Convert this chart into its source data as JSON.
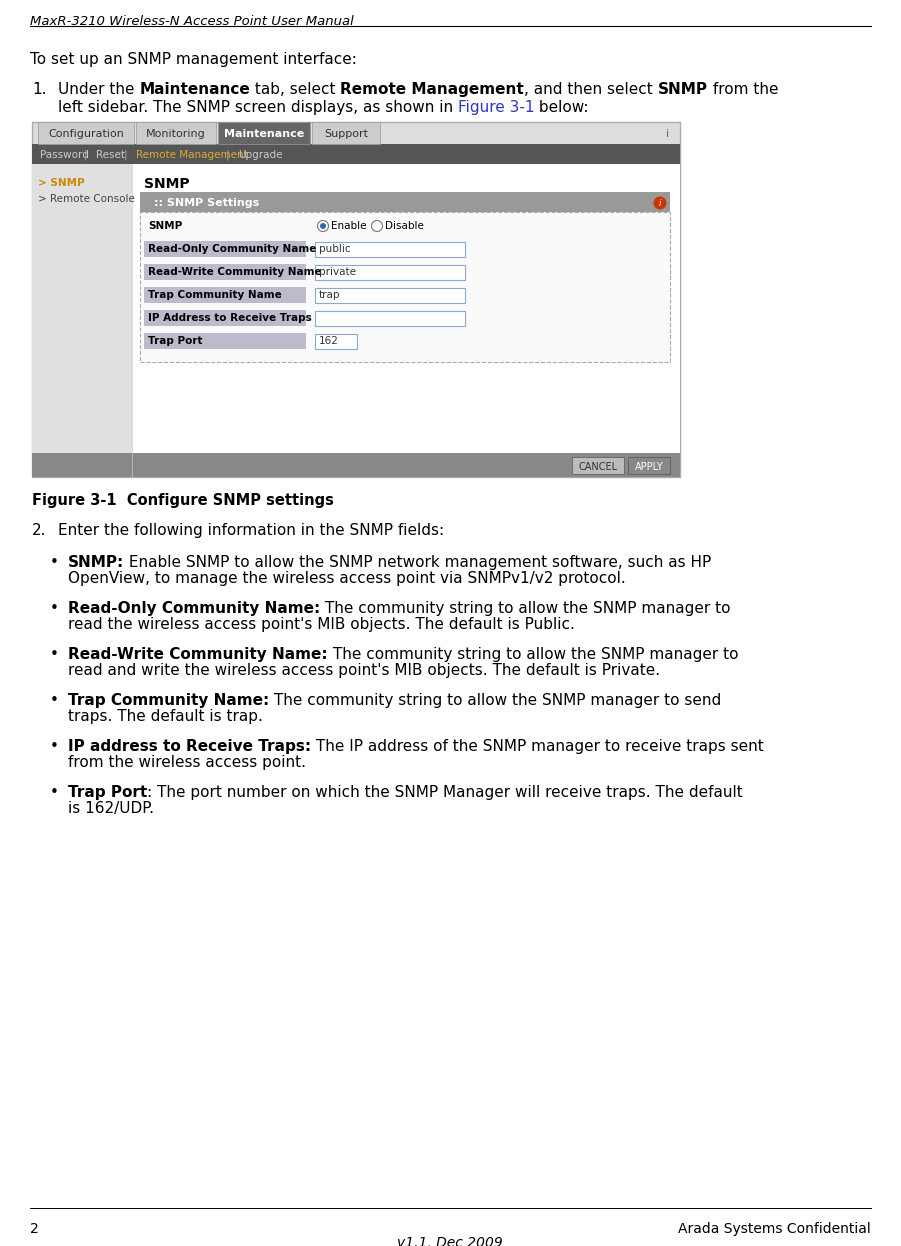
{
  "page_title": "MaxR-3210 Wireless-N Access Point User Manual",
  "page_number": "2",
  "page_footer_right": "Arada Systems Confidential",
  "page_footer_center": "v1.1, Dec 2009",
  "intro_text": "To set up an SNMP management interface:",
  "figure_caption": "Figure 3-1  Configure SNMP settings",
  "step2_intro": "Enter the following information in the SNMP fields:",
  "bullets": [
    {
      "bold": "SNMP:",
      "line1": " Enable SNMP to allow the SNMP network management software, such as HP",
      "line2": "OpenView, to manage the wireless access point via SNMPv1/v2 protocol."
    },
    {
      "bold": "Read-Only Community Name:",
      "line1": " The community string to allow the SNMP manager to",
      "line2": "read the wireless access point's MIB objects. The default is Public."
    },
    {
      "bold": "Read-Write Community Name:",
      "line1": " The community string to allow the SNMP manager to",
      "line2": "read and write the wireless access point's MIB objects. The default is Private."
    },
    {
      "bold": "Trap Community Name:",
      "line1": " The community string to allow the SNMP manager to send",
      "line2": "traps. The default is trap."
    },
    {
      "bold": "IP address to Receive Traps:",
      "line1": " The IP address of the SNMP manager to receive traps sent",
      "line2": "from the wireless access point."
    },
    {
      "bold": "Trap Port",
      "line1": ": The port number on which the SNMP Manager will receive traps. The default",
      "line2": "is 162/UDP."
    }
  ],
  "bg_color": "#ffffff",
  "link_color": "#3333cc",
  "tab_bg_active": "#666666",
  "tab_bg_inactive": "#cccccc",
  "tab_text_active": "#ffffff",
  "tab_text_inactive": "#333333",
  "nav_bar_bg": "#555555",
  "sidebar_bg": "#e0e0e0",
  "sidebar_active_color": "#cc8800",
  "sidebar_normal_color": "#444444",
  "form_header_bg": "#999999",
  "input_border": "#88aacc",
  "input_bg": "#ffffff",
  "cancel_btn_bg": "#bbbbbb",
  "cancel_btn_text": "#333333",
  "apply_btn_bg": "#888888",
  "apply_btn_text": "#ffffff",
  "bottom_bar_bg": "#888888",
  "screen_outer_bg": "#dddddd",
  "screen_border": "#aaaaaa"
}
